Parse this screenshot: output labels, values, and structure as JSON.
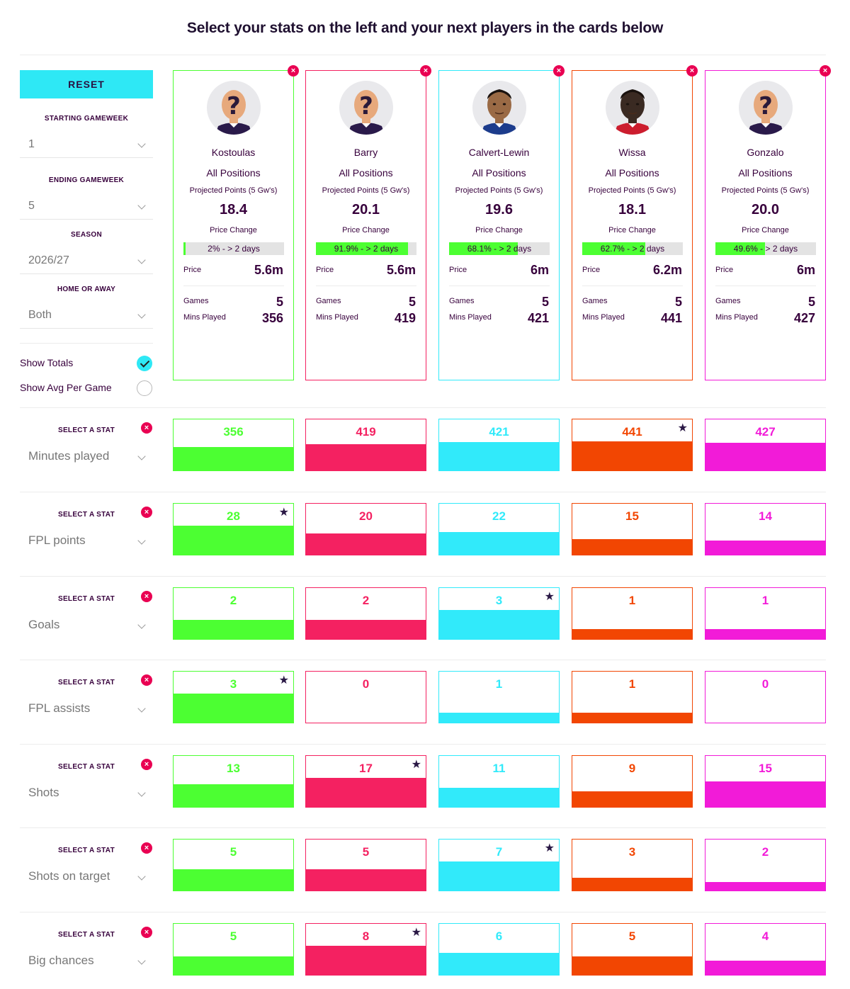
{
  "title": "Select your stats on the left and your next players in the cards below",
  "filters": {
    "reset_label": "RESET",
    "starting_gw_label": "STARTING GAMEWEEK",
    "starting_gw_value": "1",
    "ending_gw_label": "ENDING GAMEWEEK",
    "ending_gw_value": "5",
    "season_label": "SEASON",
    "season_value": "2026/27",
    "home_away_label": "HOME OR AWAY",
    "home_away_value": "Both",
    "show_totals_label": "Show Totals",
    "show_totals_checked": true,
    "show_avg_label": "Show Avg Per Game",
    "show_avg_checked": false
  },
  "card_labels": {
    "projected_points": "Projected Points (5 Gw's)",
    "price_change": "Price Change",
    "price": "Price",
    "games": "Games",
    "mins_played": "Mins Played",
    "remove": "×"
  },
  "players": [
    {
      "name": "Kostoulas",
      "position": "All Positions",
      "projected_points": "18.4",
      "price_change_text": "2% - > 2 days",
      "price_change_pct": 2,
      "price": "5.6m",
      "games": "5",
      "mins_played": "356",
      "color": "#4cff32",
      "avatar": "unknown-player-icon"
    },
    {
      "name": "Barry",
      "position": "All Positions",
      "projected_points": "20.1",
      "price_change_text": "91.9% - > 2 days",
      "price_change_pct": 91.9,
      "price": "5.6m",
      "games": "5",
      "mins_played": "419",
      "color": "#f42161",
      "avatar": "unknown-player-icon"
    },
    {
      "name": "Calvert-Lewin",
      "position": "All Positions",
      "projected_points": "19.6",
      "price_change_text": "68.1% - > 2 days",
      "price_change_pct": 68.1,
      "price": "6m",
      "games": "5",
      "mins_played": "421",
      "color": "#31eafa",
      "avatar": "player-portrait"
    },
    {
      "name": "Wissa",
      "position": "All Positions",
      "projected_points": "18.1",
      "price_change_text": "62.7% - > 2 days",
      "price_change_pct": 62.7,
      "price": "6.2m",
      "games": "5",
      "mins_played": "441",
      "color": "#f24602",
      "avatar": "player-portrait"
    },
    {
      "name": "Gonzalo",
      "position": "All Positions",
      "projected_points": "20.0",
      "price_change_text": "49.6% - > 2 days",
      "price_change_pct": 49.6,
      "price": "6m",
      "games": "5",
      "mins_played": "427",
      "color": "#f21bd8",
      "avatar": "unknown-player-icon"
    }
  ],
  "stat_select_label": "SELECT A STAT",
  "stats": [
    {
      "name": "Minutes played",
      "values": [
        "356",
        "419",
        "421",
        "441",
        "427"
      ],
      "fill": [
        0.46,
        0.52,
        0.55,
        0.57,
        0.54
      ],
      "star": 3
    },
    {
      "name": "FPL points",
      "values": [
        "28",
        "20",
        "22",
        "15",
        "14"
      ],
      "fill": [
        0.57,
        0.41,
        0.44,
        0.3,
        0.28
      ],
      "star": 0
    },
    {
      "name": "Goals",
      "values": [
        "2",
        "2",
        "3",
        "1",
        "1"
      ],
      "fill": [
        0.38,
        0.38,
        0.57,
        0.19,
        0.19
      ],
      "star": 2
    },
    {
      "name": "FPL assists",
      "values": [
        "3",
        "0",
        "1",
        "1",
        "0"
      ],
      "fill": [
        0.57,
        0,
        0.19,
        0.19,
        0
      ],
      "star": 0
    },
    {
      "name": "Shots",
      "values": [
        "13",
        "17",
        "11",
        "9",
        "15"
      ],
      "fill": [
        0.44,
        0.57,
        0.37,
        0.3,
        0.5
      ],
      "star": 1
    },
    {
      "name": "Shots on target",
      "values": [
        "5",
        "5",
        "7",
        "3",
        "2"
      ],
      "fill": [
        0.41,
        0.41,
        0.57,
        0.25,
        0.16
      ],
      "star": 2
    },
    {
      "name": "Big chances",
      "values": [
        "5",
        "8",
        "6",
        "5",
        "4"
      ],
      "fill": [
        0.36,
        0.57,
        0.43,
        0.36,
        0.28
      ],
      "star": 1
    }
  ]
}
